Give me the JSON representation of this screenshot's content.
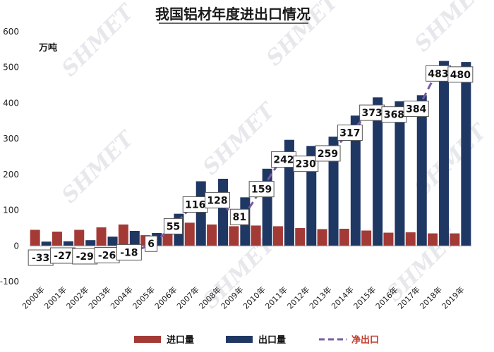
{
  "chart_data": {
    "type": "bar",
    "title": "我国铝材年度进出口情况",
    "ylabel": "万吨",
    "ylim": [
      -100,
      600
    ],
    "yticks": [
      -100,
      0,
      100,
      200,
      300,
      400,
      500,
      600
    ],
    "grid": false,
    "legend_position": "bottom",
    "categories": [
      "2000年",
      "2001年",
      "2002年",
      "2003年",
      "2004年",
      "2005年",
      "2006年",
      "2007年",
      "2008年",
      "2009年",
      "2010年",
      "2011年",
      "2012年",
      "2013年",
      "2014年",
      "2015年",
      "2016年",
      "2017年",
      "2018年",
      "2019年"
    ],
    "series": [
      {
        "name": "进口量",
        "kind": "bar",
        "color": "#a33a36",
        "values": [
          45,
          40,
          45,
          52,
          60,
          30,
          35,
          65,
          60,
          55,
          57,
          55,
          50,
          47,
          48,
          43,
          37,
          38,
          35,
          35
        ]
      },
      {
        "name": "出口量",
        "kind": "bar",
        "color": "#1f3763",
        "values": [
          12,
          13,
          16,
          26,
          42,
          36,
          90,
          181,
          188,
          136,
          216,
          297,
          280,
          306,
          365,
          416,
          405,
          422,
          518,
          515
        ]
      },
      {
        "name": "净出口",
        "kind": "line",
        "color": "#7a5ba3",
        "values": [
          -33,
          -27,
          -29,
          -26,
          -18,
          6,
          55,
          116,
          128,
          81,
          159,
          242,
          230,
          259,
          317,
          373,
          368,
          384,
          483,
          480
        ]
      }
    ],
    "data_labels": [
      "-33",
      "-27",
      "-29",
      "-26",
      "-18",
      "6",
      "55",
      "116",
      "128",
      "81",
      "159",
      "242",
      "230",
      "259",
      "317",
      "373",
      "368",
      "384",
      "483",
      "480"
    ],
    "watermark": "SHMET"
  }
}
